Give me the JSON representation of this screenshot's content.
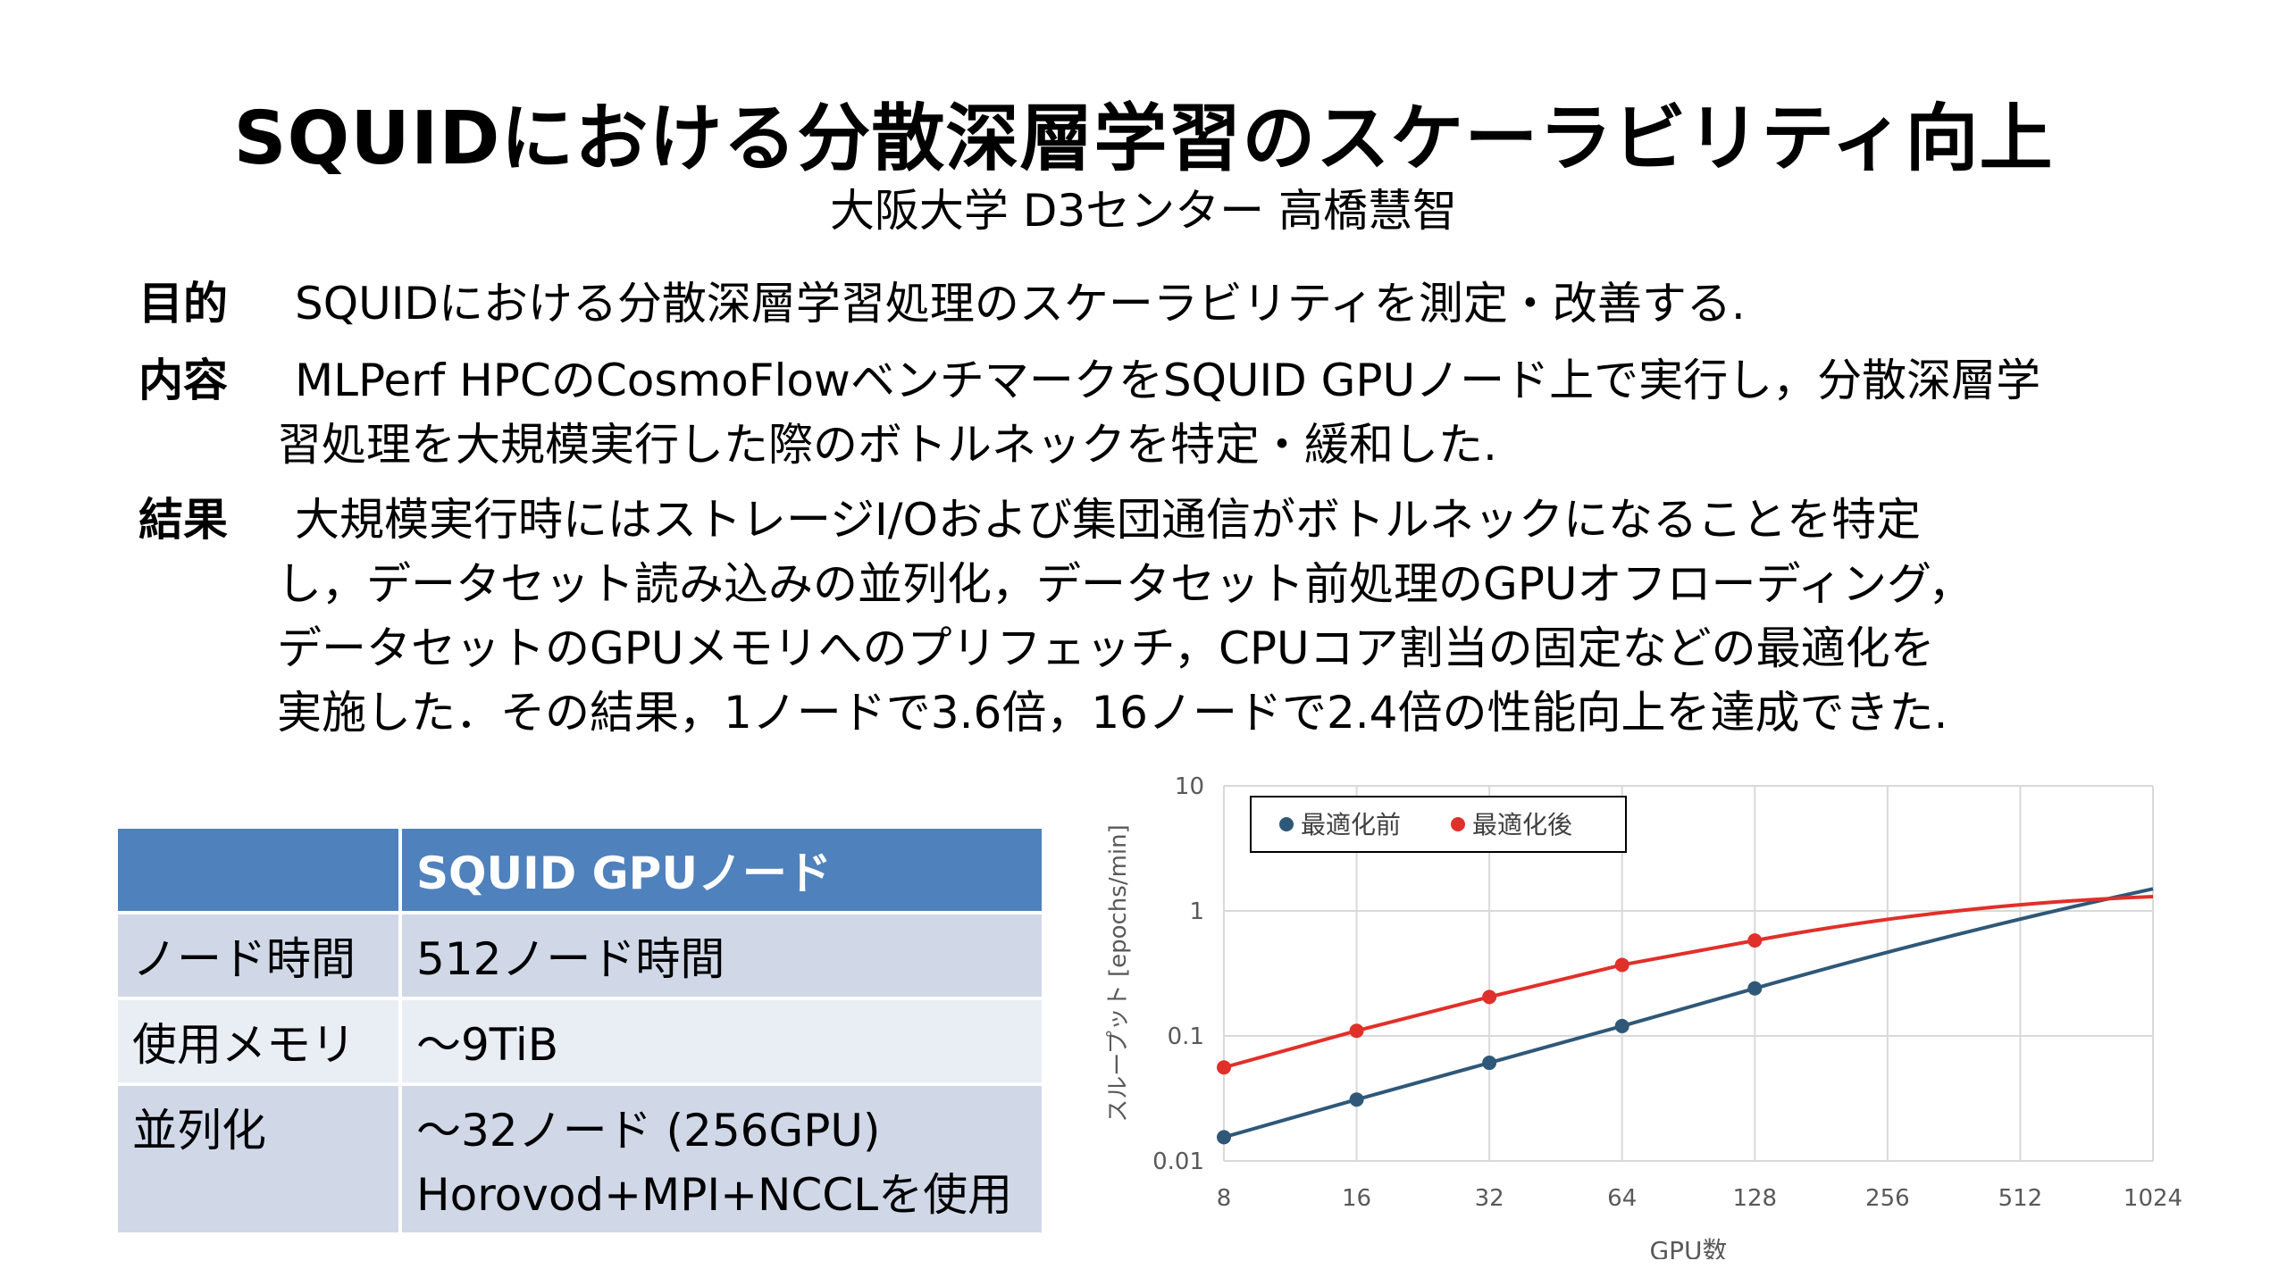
{
  "title": "SQUIDにおける分散深層学習のスケーラビリティ向上",
  "subtitle": "大阪大学 D3センター 高橋慧智",
  "sections": [
    {
      "label": "目的",
      "lines": [
        "SQUIDにおける分散深層学習処理のスケーラビリティを測定・改善する."
      ]
    },
    {
      "label": "内容",
      "lines": [
        "MLPerf HPCのCosmoFlowベンチマークをSQUID GPUノード上で実行し，分散深層学",
        "習処理を大規模実行した際のボトルネックを特定・緩和した."
      ]
    },
    {
      "label": "結果",
      "lines": [
        "大規模実行時にはストレージI/Oおよび集団通信がボトルネックになることを特定",
        "し，データセット読み込みの並列化，データセット前処理のGPUオフローディング，",
        "データセットのGPUメモリへのプリフェッチ，CPUコア割当の固定などの最適化を",
        "実施した．その結果，1ノードで3.6倍，16ノードで2.4倍の性能向上を達成できた."
      ]
    }
  ],
  "table": {
    "header": [
      "",
      "SQUID GPUノード"
    ],
    "rows": [
      [
        "ノード時間",
        "512ノード時間"
      ],
      [
        "使用メモリ",
        "～9TiB"
      ],
      [
        "並列化",
        "～32ノード (256GPU)",
        "Horovod+MPI+NCCLを使用"
      ]
    ]
  },
  "chart_data": {
    "type": "line",
    "x_scale": "log2",
    "y_scale": "log10",
    "xlabel": "GPU数",
    "ylabel": "スループット [epochs/min]",
    "x_ticks": [
      8,
      16,
      32,
      64,
      128,
      256,
      512,
      1024
    ],
    "y_ticks": [
      0.01,
      0.1,
      1,
      10
    ],
    "y_tick_labels": [
      "0.01",
      "0.1",
      "1",
      "10"
    ],
    "xlim": [
      8,
      1024
    ],
    "ylim": [
      0.01,
      10
    ],
    "grid": true,
    "legend_position": "top-left",
    "series": [
      {
        "name": "最適化前",
        "color": "#2f5878",
        "x": [
          8,
          16,
          32,
          64,
          128
        ],
        "values": [
          0.0155,
          0.031,
          0.061,
          0.12,
          0.24
        ],
        "trend_end": {
          "x": 1024,
          "y": 1.5
        }
      },
      {
        "name": "最適化後",
        "color": "#e0302a",
        "x": [
          8,
          16,
          32,
          64,
          128
        ],
        "values": [
          0.056,
          0.11,
          0.205,
          0.37,
          0.58
        ],
        "trend_end": {
          "x": 1024,
          "y": 1.3
        }
      }
    ]
  }
}
